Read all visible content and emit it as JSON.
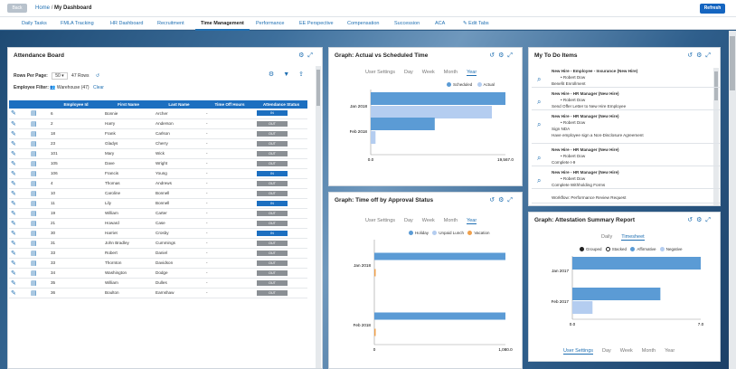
{
  "topbar": {
    "back": "Back",
    "home": "Home",
    "sep": "/",
    "title": "My Dashboard",
    "refresh": "Refresh"
  },
  "tabs": [
    "Daily Tasks",
    "FMLA Tracking",
    "HR Dashboard",
    "Recruitment",
    "Time Management",
    "Performance",
    "EE Perspective",
    "Compensation",
    "Succession",
    "ACA",
    "✎ Edit Tabs"
  ],
  "attendance": {
    "title": "Attendance Board",
    "rows_label": "Rows Per Page:",
    "rows_value": "50",
    "rows_count": "47 Rows",
    "filter_label": "Employee Filter:",
    "filter_value": "Warehouse (47)",
    "clear": "Clear",
    "headers": [
      "Employee Id",
      "First Name",
      "Last Name",
      "Time Off Hours",
      "Attendance Status"
    ],
    "rows": [
      [
        "6",
        "Bonnie",
        "Archer",
        "-",
        "IN"
      ],
      [
        "2",
        "Harry",
        "Anderson",
        "-",
        "OUT"
      ],
      [
        "18",
        "Frank",
        "Carlson",
        "-",
        "OUT"
      ],
      [
        "23",
        "Gladys",
        "Cherry",
        "-",
        "OUT"
      ],
      [
        "101",
        "Mary",
        "Wick",
        "-",
        "OUT"
      ],
      [
        "105",
        "Dave",
        "Wright",
        "-",
        "OUT"
      ],
      [
        "106",
        "Francis",
        "Young",
        "-",
        "IN"
      ],
      [
        "4",
        "Thomas",
        "Andrews",
        "-",
        "OUT"
      ],
      [
        "10",
        "Caroline",
        "Bonnell",
        "-",
        "OUT"
      ],
      [
        "11",
        "Lily",
        "Bonnell",
        "-",
        "IN"
      ],
      [
        "19",
        "William",
        "Carter",
        "-",
        "OUT"
      ],
      [
        "21",
        "Howard",
        "Case",
        "-",
        "OUT"
      ],
      [
        "30",
        "Harriet",
        "Crosby",
        "-",
        "IN"
      ],
      [
        "31",
        "John Bradley",
        "Cummings",
        "-",
        "OUT"
      ],
      [
        "33",
        "Robert",
        "Daniel",
        "-",
        "OUT"
      ],
      [
        "33",
        "Thornton",
        "Davidson",
        "-",
        "OUT"
      ],
      [
        "34",
        "Washington",
        "Dodge",
        "-",
        "OUT"
      ],
      [
        "35",
        "William",
        "Dulles",
        "-",
        "OUT"
      ],
      [
        "36",
        "Boulton",
        "Earnshaw",
        "-",
        "OUT"
      ]
    ]
  },
  "graph_tabs": [
    "User Settings",
    "Day",
    "Week",
    "Month",
    "Year"
  ],
  "graph1": {
    "title": "Graph: Actual vs Scheduled Time",
    "legend": [
      "Scheduled",
      "Actual"
    ],
    "colors": {
      "scheduled": "#5b9bd5",
      "actual": "#b4cdf0"
    },
    "axis_min": "0.0",
    "axis_max": "19,567.0"
  },
  "graph2": {
    "title": "Graph: Time off by Approval Status",
    "legend": [
      "Holiday",
      "Unpaid Lunch",
      "Vacation"
    ],
    "colors": {
      "holiday": "#5b9bd5",
      "unpaid": "#b4cdf0",
      "vacation": "#f0a04b"
    },
    "axis_min": "0",
    "axis_max": "1,080.0"
  },
  "todo": {
    "title": "My To Do Items",
    "items": [
      {
        "l1": "New Hire - Employee - Insurance (New Hire)",
        "l2": "Robert Dow",
        "l3": "Benefit Enrollment"
      },
      {
        "l1": "New Hire - HR Manager (New Hire)",
        "l2": "Robert Dow",
        "l3": "Send Offer Letter to New Hire Employee"
      },
      {
        "l1": "New Hire - HR Manager (New Hire)",
        "l2": "Robert Dow",
        "l3": "Sign NDA",
        "l4": "Have employee sign a Non-Disclosure Agreement"
      },
      {
        "l1": "New Hire - HR Manager (New Hire)",
        "l2": "Robert Dow",
        "l3": "Complete I-9"
      },
      {
        "l1": "New Hire - HR Manager (New Hire)",
        "l2": "Robert Dow",
        "l3": "Complete Withholding Forms"
      }
    ],
    "last": "Workflow: Performance Review Request"
  },
  "graph3": {
    "title": "Graph: Attestation Summary Report",
    "tabs": [
      "Daily",
      "Timesheet"
    ],
    "legend": [
      "Grouped",
      "Stacked",
      "Affirmative",
      "Negative"
    ],
    "axis_min": "0.0",
    "axis_max": "7.0",
    "bottom_tabs": [
      "User Settings",
      "Day",
      "Week",
      "Month",
      "Year"
    ]
  },
  "chart_data": [
    {
      "type": "bar",
      "title": "Graph: Actual vs Scheduled Time",
      "categories": [
        "Jan 2018",
        "Feb 2018"
      ],
      "series": [
        {
          "name": "Scheduled",
          "values": [
            19567,
            9300
          ]
        },
        {
          "name": "Actual",
          "values": [
            17600,
            700
          ]
        }
      ],
      "xlim": [
        0,
        19567
      ]
    },
    {
      "type": "bar",
      "title": "Graph: Time off by Approval Status",
      "categories": [
        "Jan 2018",
        "Feb 2018"
      ],
      "series": [
        {
          "name": "Holiday",
          "values": [
            1080,
            1080
          ]
        },
        {
          "name": "Unpaid Lunch",
          "values": [
            0,
            0
          ]
        },
        {
          "name": "Vacation",
          "values": [
            10,
            10
          ]
        }
      ],
      "xlim": [
        0,
        1080
      ]
    },
    {
      "type": "bar",
      "title": "Graph: Attestation Summary Report",
      "categories": [
        "Jan 2017",
        "Feb 2017"
      ],
      "series": [
        {
          "name": "Affirmative",
          "values": [
            7,
            4.8
          ]
        },
        {
          "name": "Negative",
          "values": [
            0,
            1.1
          ]
        }
      ],
      "xlim": [
        0,
        7
      ]
    }
  ]
}
